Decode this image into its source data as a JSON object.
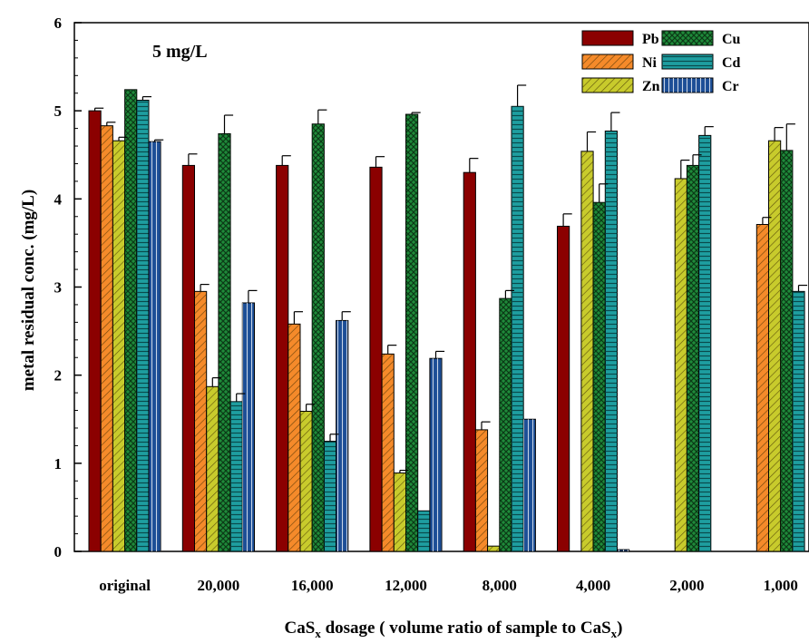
{
  "chart_data": {
    "type": "bar",
    "annotation": "5 mg/L",
    "ylabel": "metal residual conc. (mg/L)",
    "xlabel_parts": [
      "CaS",
      "x",
      " dosage ( volume ratio of sample to CaS",
      "x",
      ")"
    ],
    "ylim": [
      0,
      6
    ],
    "yticks": [
      "0",
      "1",
      "2",
      "3",
      "4",
      "5",
      "6"
    ],
    "categories": [
      "original",
      "20,000",
      "16,000",
      "12,000",
      "8,000",
      "4,000",
      "2,000",
      "1,000"
    ],
    "legend_position": "top-right",
    "series": [
      {
        "name": "Pb",
        "color": "#8B0000",
        "pattern": "solid",
        "values": [
          5.0,
          4.38,
          4.38,
          4.36,
          4.3,
          3.69,
          0,
          0
        ],
        "errors": [
          0.03,
          0.13,
          0.11,
          0.12,
          0.16,
          0.14,
          0,
          0
        ]
      },
      {
        "name": "Ni",
        "color": "#F58A2A",
        "pattern": "diagonal",
        "values": [
          4.83,
          2.95,
          2.58,
          2.24,
          1.38,
          0,
          0,
          3.71
        ],
        "errors": [
          0.04,
          0.08,
          0.14,
          0.1,
          0.09,
          0,
          0,
          0.08
        ]
      },
      {
        "name": "Zn",
        "color": "#C8CB2C",
        "pattern": "diagonal",
        "values": [
          4.66,
          1.87,
          1.59,
          0.89,
          0.06,
          4.54,
          4.23,
          4.66
        ],
        "errors": [
          0.04,
          0.1,
          0.08,
          0.03,
          0,
          0.22,
          0.21,
          0.15
        ]
      },
      {
        "name": "Cu",
        "color": "#1F8A3A",
        "pattern": "cross",
        "values": [
          5.24,
          4.74,
          4.85,
          4.96,
          2.87,
          3.96,
          4.38,
          4.55
        ],
        "errors": [
          0,
          0.21,
          0.16,
          0.02,
          0.09,
          0.21,
          0.12,
          0.3
        ]
      },
      {
        "name": "Cd",
        "color": "#1E9EA0",
        "pattern": "horizontal",
        "values": [
          5.12,
          1.7,
          1.25,
          0.46,
          5.05,
          4.77,
          4.72,
          2.95
        ],
        "errors": [
          0.04,
          0.09,
          0.08,
          0,
          0.24,
          0.21,
          0.1,
          0.07
        ]
      },
      {
        "name": "Cr",
        "color": "#1C4E96",
        "pattern": "vertical",
        "values": [
          4.65,
          2.82,
          2.62,
          2.19,
          1.5,
          0.02,
          0,
          0
        ],
        "errors": [
          0.02,
          0.14,
          0.1,
          0.08,
          0,
          0,
          0,
          0
        ]
      }
    ]
  }
}
